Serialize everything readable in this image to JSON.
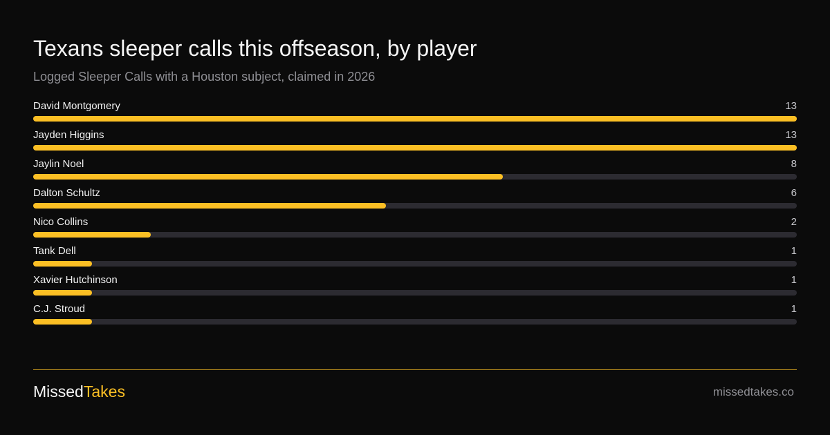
{
  "chart_data": {
    "type": "bar",
    "title": "Texans  sleeper calls this offseason, by player",
    "subtitle": "Logged Sleeper Calls with a Houston subject, claimed in 2026",
    "categories": [
      "David Montgomery",
      "Jayden Higgins",
      "Jaylin Noel",
      "Dalton Schultz",
      "Nico Collins",
      "Tank Dell",
      "Xavier Hutchinson",
      "C.J. Stroud"
    ],
    "values": [
      13,
      13,
      8,
      6,
      2,
      1,
      1,
      1
    ],
    "value_labels": [
      "13",
      "13",
      "8",
      "6",
      "2",
      "1",
      "1",
      "1"
    ],
    "xlim": [
      0,
      13
    ],
    "orientation": "horizontal",
    "grid": false,
    "legend": "none"
  },
  "colors": {
    "background": "#0b0b0b",
    "bar": "#fbbf24",
    "track": "#2c2b31",
    "muted_text": "#8e8e93"
  },
  "footer": {
    "brand_part1": "Missed",
    "brand_part2": "Takes",
    "site": "missedtakes.co"
  }
}
